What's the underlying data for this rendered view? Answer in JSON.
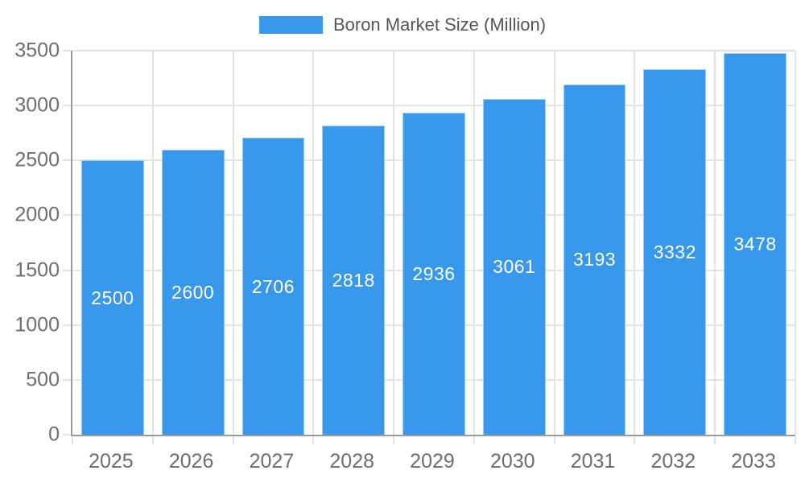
{
  "chart_data": {
    "type": "bar",
    "title": "",
    "legend": "Boron Market Size (Million)",
    "legend_position": "top",
    "categories": [
      "2025",
      "2026",
      "2027",
      "2028",
      "2029",
      "2030",
      "2031",
      "2032",
      "2033"
    ],
    "values": [
      2500,
      2600,
      2706,
      2818,
      2936,
      3061,
      3193,
      3332,
      3478
    ],
    "bar_labels_shown": true,
    "xlabel": "",
    "ylabel": "",
    "ylim": [
      0,
      3500
    ],
    "yticks": [
      0,
      500,
      1000,
      1500,
      2000,
      2500,
      3000,
      3500
    ],
    "grid": true,
    "colors": {
      "bar": "#3898EC",
      "bar_border": "#9fccf6",
      "bar_label": "#FFFFFF",
      "axis_line": "#999999",
      "grid_line": "#E4E4E4",
      "tick_label": "#6E6E6E",
      "legend_text": "#555555",
      "background": "#FFFFFF"
    }
  }
}
